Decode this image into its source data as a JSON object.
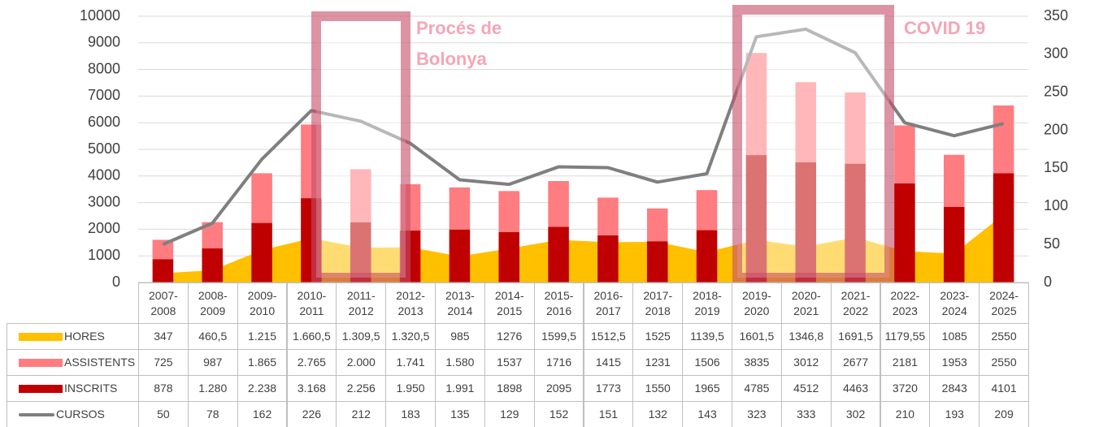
{
  "chart_data": {
    "type": "combo",
    "stacked": true,
    "grid": true,
    "categories": [
      "2007-2008",
      "2008-2009",
      "2009-2010",
      "2010-2011",
      "2011-2012",
      "2012-2013",
      "2013-2014",
      "2014-2015",
      "2015-2016",
      "2016-2017",
      "2017-2018",
      "2018-2019",
      "2019-2020",
      "2020-2021",
      "2021-2022",
      "2022-2023",
      "2023-2024",
      "2024-2025"
    ],
    "series": [
      {
        "name": "HORES",
        "type": "area",
        "color": "#FFC000",
        "values": [
          347,
          460.5,
          1215,
          1660.5,
          1309.5,
          1320.5,
          985,
          1276,
          1599.5,
          1512.5,
          1525,
          1139.5,
          1601.5,
          1346.8,
          1691.5,
          1179.55,
          1085,
          2550
        ],
        "value_labels": [
          "347",
          "460,5",
          "1.215",
          "1.660,5",
          "1.309,5",
          "1.320,5",
          "985",
          "1276",
          "1599,5",
          "1512,5",
          "1525",
          "1139,5",
          "1601,5",
          "1346,8",
          "1691,5",
          "1179,55",
          "1085",
          "2550"
        ]
      },
      {
        "name": "ASSISTENTS",
        "type": "bar",
        "color": "#FF7C80",
        "values": [
          725,
          987,
          1865,
          2765,
          2000,
          1741,
          1580,
          1537,
          1716,
          1415,
          1231,
          1506,
          3835,
          3012,
          2677,
          2181,
          1953,
          2550
        ],
        "value_labels": [
          "725",
          "987",
          "1.865",
          "2.765",
          "2.000",
          "1.741",
          "1.580",
          "1537",
          "1716",
          "1415",
          "1231",
          "1506",
          "3835",
          "3012",
          "2677",
          "2181",
          "1953",
          "2550"
        ]
      },
      {
        "name": "INSCRITS",
        "type": "bar",
        "color": "#C00000",
        "values": [
          878,
          1280,
          2238,
          3168,
          2256,
          1950,
          1991,
          1898,
          2095,
          1773,
          1550,
          1965,
          4785,
          4512,
          4463,
          3720,
          2843,
          4101
        ],
        "value_labels": [
          "878",
          "1.280",
          "2.238",
          "3.168",
          "2.256",
          "1.950",
          "1.991",
          "1898",
          "2095",
          "1773",
          "1550",
          "1965",
          "4785",
          "4512",
          "4463",
          "3720",
          "2843",
          "4101"
        ]
      },
      {
        "name": "CURSOS",
        "type": "line",
        "color": "#7F7F7F",
        "axis": "y2",
        "values": [
          50,
          78,
          162,
          226,
          212,
          183,
          135,
          129,
          152,
          151,
          132,
          143,
          323,
          333,
          302,
          210,
          193,
          209
        ]
      }
    ],
    "ylim": [
      0,
      10000
    ],
    "yticks": [
      0,
      1000,
      2000,
      3000,
      4000,
      5000,
      6000,
      7000,
      8000,
      9000,
      10000
    ],
    "y2lim": [
      0,
      350
    ],
    "y2ticks": [
      0,
      50,
      100,
      150,
      200,
      250,
      300,
      350
    ],
    "annotations": [
      "Procés de Bolonya",
      "COVID 19"
    ]
  }
}
